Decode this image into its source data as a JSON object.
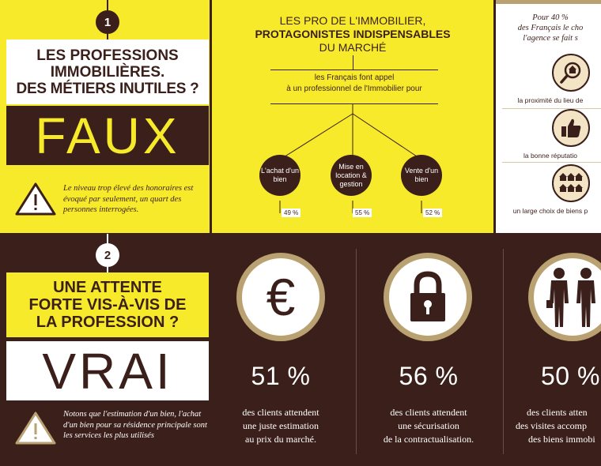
{
  "section1": {
    "number": "1",
    "question_line1": "LES PROFESSIONS",
    "question_line2": "IMMOBILIÈRES.",
    "question_line3": "DES MÉTIERS INUTILES ?",
    "answer": "FAUX",
    "warning_text": "Le niveau trop élevé des honoraires est évoqué par seulement, un quart des personnes interrogées.",
    "center": {
      "title_line1": "LES PRO DE L'IMMOBILIER,",
      "title_line2": "PROTAGONISTES INDISPENSABLES",
      "title_line3": "DU MARCHÉ",
      "subtitle_line1": "les Français font appel",
      "subtitle_line2": "à un professionnel de l'Immobilier pour",
      "items": [
        {
          "label": "L'achat d'un bien",
          "pct": "49 %"
        },
        {
          "label": "Mise en location & gestion",
          "pct": "55 %"
        },
        {
          "label": "Vente d'un bien",
          "pct": "52 %"
        }
      ]
    },
    "right": {
      "head_line1": "Pour 40 %",
      "head_line2": "des Français le cho",
      "head_line3": "l'agence se fait s",
      "items": [
        {
          "icon": "house-magnifier-icon",
          "label": "la proximité du lieu de"
        },
        {
          "icon": "thumbs-up-icon",
          "label": "la bonne réputatio"
        },
        {
          "icon": "houses-icon",
          "label": "un large choix de biens p"
        }
      ]
    }
  },
  "section2": {
    "number": "2",
    "question_line1": "UNE ATTENTE",
    "question_line2": "FORTE VIS-À-VIS DE",
    "question_line3": "LA PROFESSION ?",
    "answer": "VRAI",
    "warning_text": "Notons que l'estimation d'un bien, l'achat d'un bien pour sa résidence principale sont les services les plus utilisés",
    "stats": [
      {
        "icon": "euro-icon",
        "value": "51 %",
        "line1": "des clients attendent",
        "line2": "une juste estimation",
        "line3": "au prix du marché."
      },
      {
        "icon": "padlock-icon",
        "value": "56 %",
        "line1": "des clients attendent",
        "line2": "une sécurisation",
        "line3": "de la contractualisation."
      },
      {
        "icon": "people-icon",
        "value": "50 %",
        "line1": "des clients atten",
        "line2": "des visites accomp",
        "line3": "des biens immobi"
      }
    ]
  },
  "colors": {
    "yellow": "#f6ea2a",
    "brown": "#3b1f1a",
    "gold": "#b9a172",
    "white": "#ffffff"
  }
}
